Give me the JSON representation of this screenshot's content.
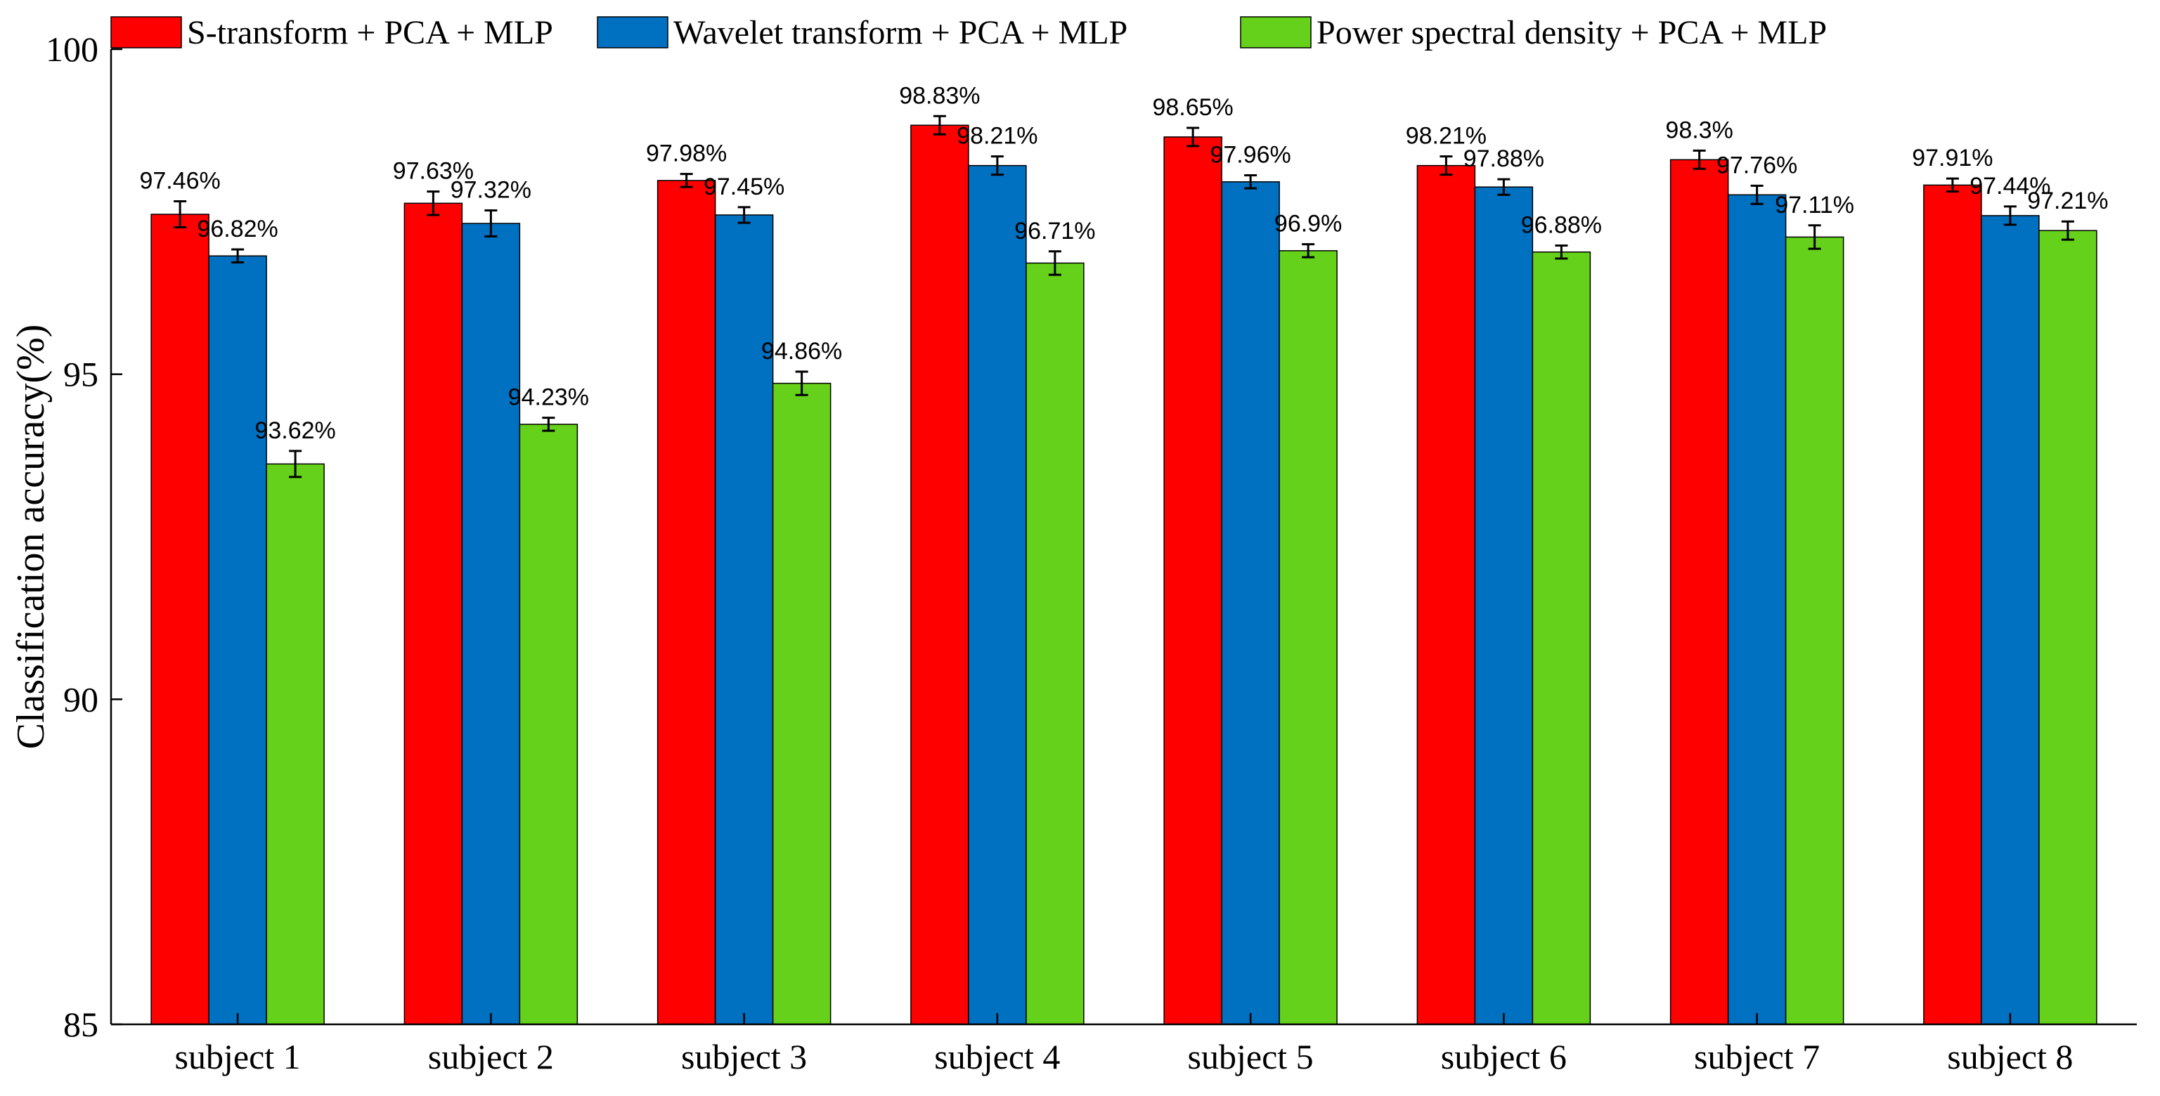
{
  "chart_data": {
    "type": "bar",
    "title": "",
    "xlabel": "",
    "ylabel": "Classification accuracy(%)",
    "ylim": [
      85,
      100
    ],
    "yticks": [
      85,
      90,
      95,
      100
    ],
    "grid": false,
    "legend_position": "top",
    "categories": [
      "subject 1",
      "subject 2",
      "subject 3",
      "subject 4",
      "subject 5",
      "subject 6",
      "subject 7",
      "subject 8"
    ],
    "series": [
      {
        "name": "S-transform + PCA + MLP",
        "color": "#ff0000",
        "values": [
          97.46,
          97.63,
          97.98,
          98.83,
          98.65,
          98.21,
          98.3,
          97.91
        ],
        "labels": [
          "97.46%",
          "97.63%",
          "97.98%",
          "98.83%",
          "98.65%",
          "98.21%",
          "98.3%",
          "97.91%"
        ],
        "errors": [
          0.2,
          0.18,
          0.1,
          0.14,
          0.14,
          0.14,
          0.14,
          0.1
        ]
      },
      {
        "name": "Wavelet transform + PCA + MLP",
        "color": "#0070c0",
        "values": [
          96.82,
          97.32,
          97.45,
          98.21,
          97.96,
          97.88,
          97.76,
          97.44
        ],
        "labels": [
          "96.82%",
          "97.32%",
          "97.45%",
          "98.21%",
          "97.96%",
          "97.88%",
          "97.76%",
          "97.44%"
        ],
        "errors": [
          0.1,
          0.2,
          0.12,
          0.14,
          0.1,
          0.12,
          0.14,
          0.14
        ]
      },
      {
        "name": "Power spectral density + PCA + MLP",
        "color": "#66d11a",
        "values": [
          93.62,
          94.23,
          94.86,
          96.71,
          96.9,
          96.88,
          97.11,
          97.21
        ],
        "labels": [
          "93.62%",
          "94.23%",
          "94.86%",
          "96.71%",
          "96.9%",
          "96.88%",
          "97.11%",
          "97.21%"
        ],
        "errors": [
          0.2,
          0.1,
          0.18,
          0.18,
          0.1,
          0.1,
          0.18,
          0.14
        ]
      }
    ]
  }
}
